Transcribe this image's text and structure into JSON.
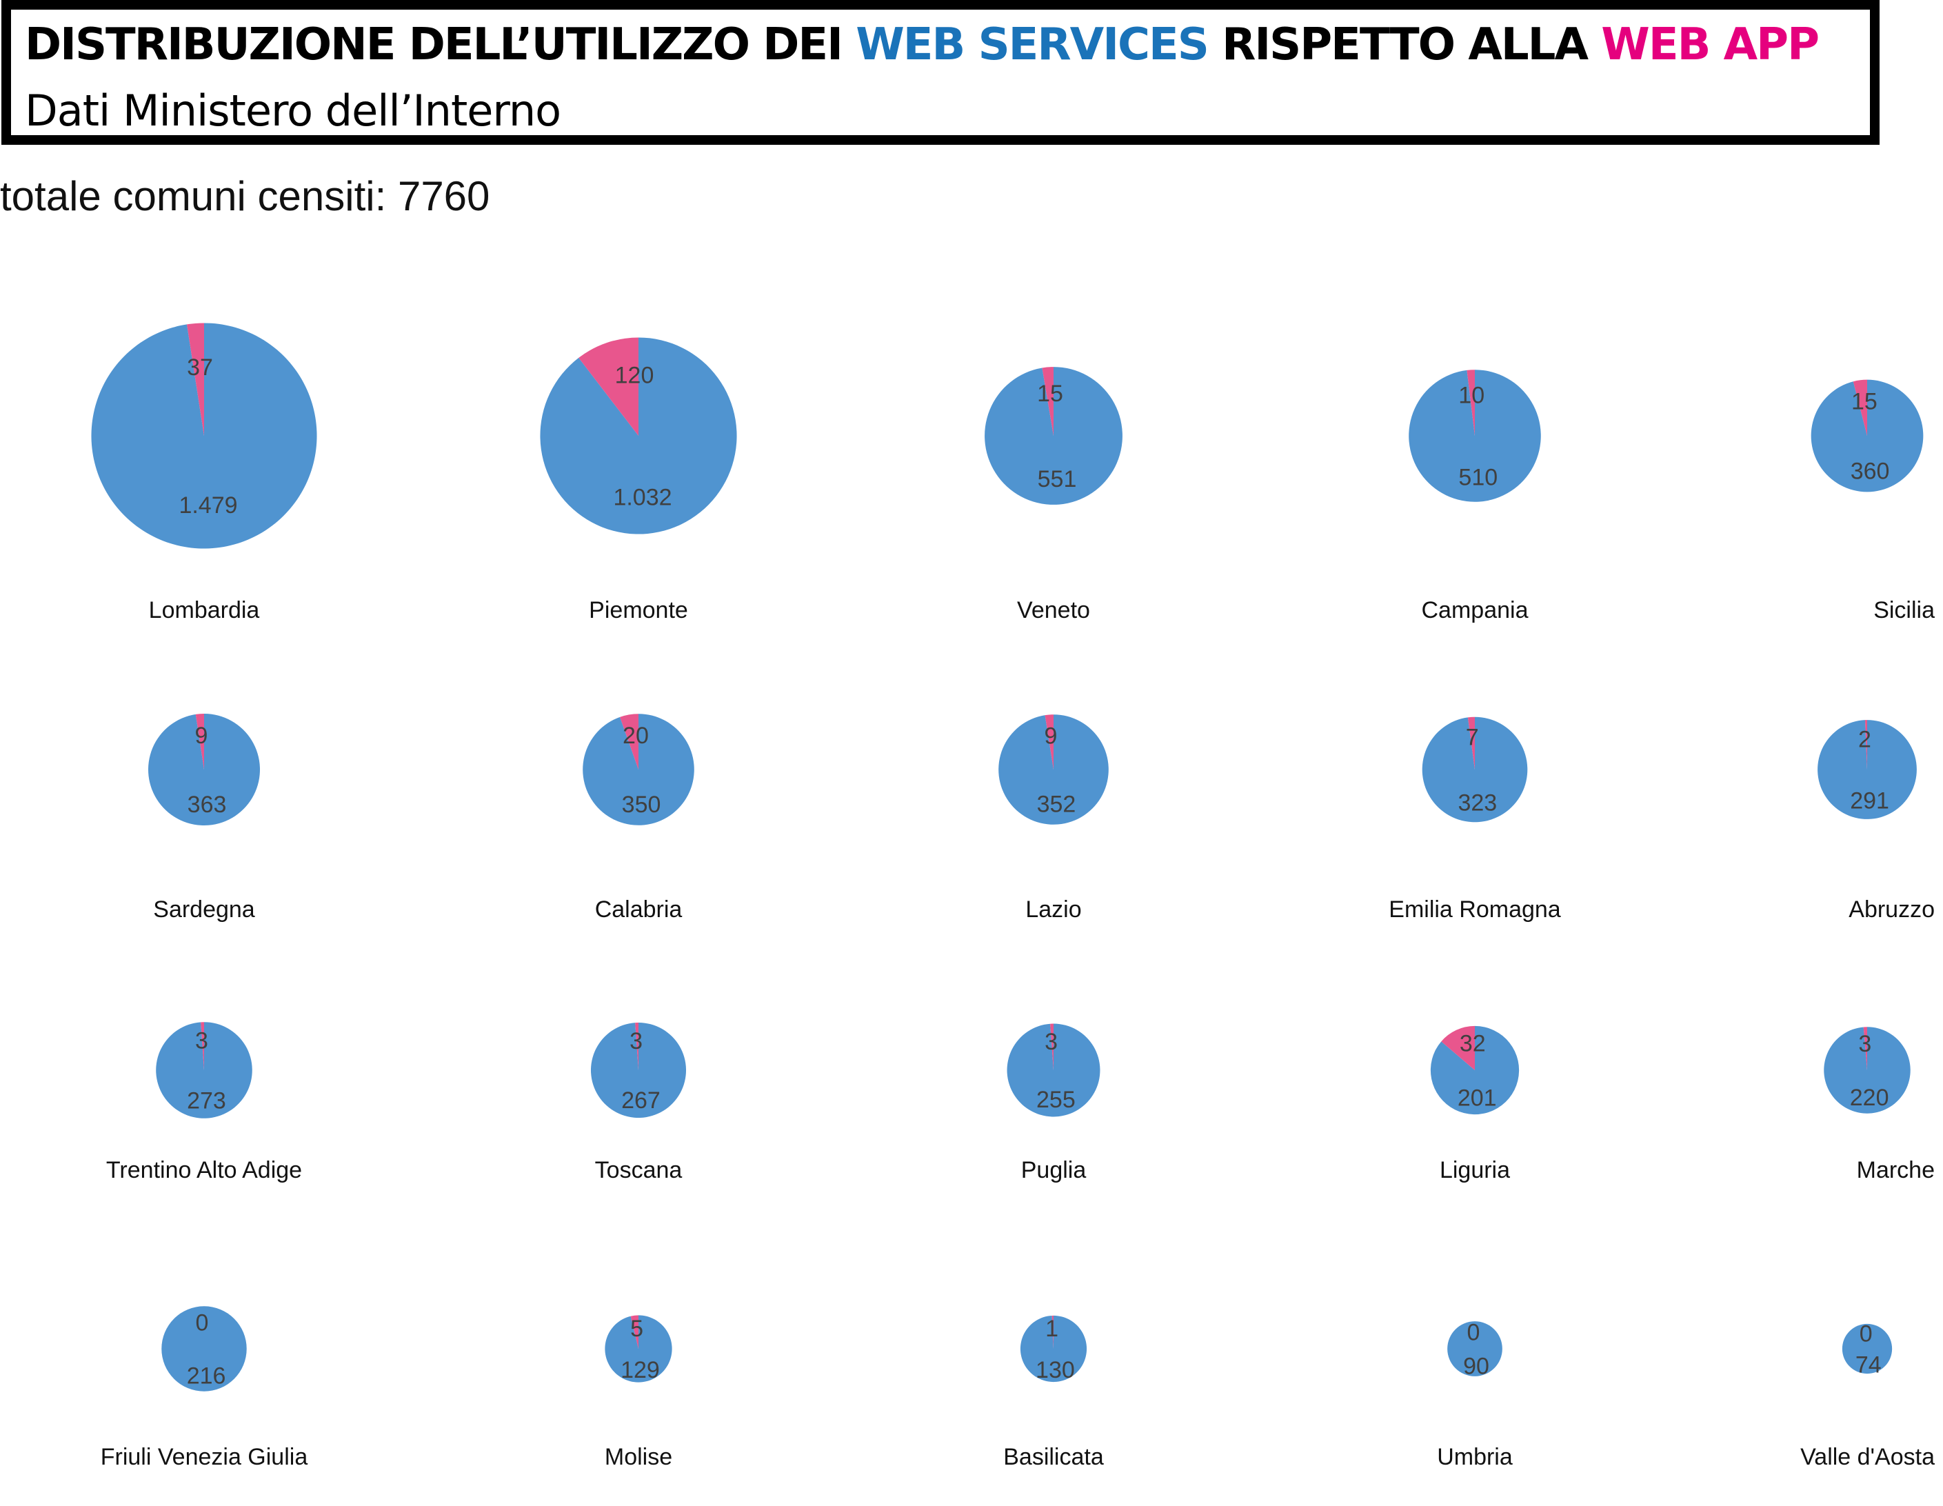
{
  "title": {
    "part1": "DISTRIBUZIONE DELL’UTILIZZO DEI ",
    "highlight_web_services": "WEB SERVICES",
    "part2": " RISPETTO ALLA ",
    "highlight_web_app": "WEB APP",
    "subtitle": "Dati Ministero dell’Interno"
  },
  "total_note": "totale comuni censiti: 7760",
  "colors": {
    "web_services": "#5094d0",
    "web_app": "#e8568d",
    "title_web_services": "#1a73b9",
    "title_web_app": "#e5007e"
  },
  "chart_data": {
    "type": "pie",
    "series_names": [
      "WEB SERVICES",
      "WEB APP"
    ],
    "regions": [
      {
        "name": "Lombardia",
        "web_services": 1479,
        "web_services_label": "1.479",
        "web_app": 37,
        "web_app_label": "37"
      },
      {
        "name": "Piemonte",
        "web_services": 1032,
        "web_services_label": "1.032",
        "web_app": 120,
        "web_app_label": "120"
      },
      {
        "name": "Veneto",
        "web_services": 551,
        "web_services_label": "551",
        "web_app": 15,
        "web_app_label": "15"
      },
      {
        "name": "Campania",
        "web_services": 510,
        "web_services_label": "510",
        "web_app": 10,
        "web_app_label": "10"
      },
      {
        "name": "Sicilia",
        "web_services": 360,
        "web_services_label": "360",
        "web_app": 15,
        "web_app_label": "15"
      },
      {
        "name": "Sardegna",
        "web_services": 363,
        "web_services_label": "363",
        "web_app": 9,
        "web_app_label": "9"
      },
      {
        "name": "Calabria",
        "web_services": 350,
        "web_services_label": "350",
        "web_app": 20,
        "web_app_label": "20"
      },
      {
        "name": "Lazio",
        "web_services": 352,
        "web_services_label": "352",
        "web_app": 9,
        "web_app_label": "9"
      },
      {
        "name": "Emilia Romagna",
        "web_services": 323,
        "web_services_label": "323",
        "web_app": 7,
        "web_app_label": "7"
      },
      {
        "name": "Abruzzo",
        "web_services": 291,
        "web_services_label": "291",
        "web_app": 2,
        "web_app_label": "2"
      },
      {
        "name": "Trentino Alto Adige",
        "web_services": 273,
        "web_services_label": "273",
        "web_app": 3,
        "web_app_label": "3"
      },
      {
        "name": "Toscana",
        "web_services": 267,
        "web_services_label": "267",
        "web_app": 3,
        "web_app_label": "3"
      },
      {
        "name": "Puglia",
        "web_services": 255,
        "web_services_label": "255",
        "web_app": 3,
        "web_app_label": "3"
      },
      {
        "name": "Liguria",
        "web_services": 201,
        "web_services_label": "201",
        "web_app": 32,
        "web_app_label": "32"
      },
      {
        "name": "Marche",
        "web_services": 220,
        "web_services_label": "220",
        "web_app": 3,
        "web_app_label": "3"
      },
      {
        "name": "Friuli Venezia Giulia",
        "web_services": 216,
        "web_services_label": "216",
        "web_app": 0,
        "web_app_label": "0"
      },
      {
        "name": "Molise",
        "web_services": 129,
        "web_services_label": "129",
        "web_app": 5,
        "web_app_label": "5"
      },
      {
        "name": "Basilicata",
        "web_services": 130,
        "web_services_label": "130",
        "web_app": 1,
        "web_app_label": "1"
      },
      {
        "name": "Umbria",
        "web_services": 90,
        "web_services_label": "90",
        "web_app": 0,
        "web_app_label": "0"
      },
      {
        "name": "Valle d'Aosta",
        "web_services": 74,
        "web_services_label": "74",
        "web_app": 0,
        "web_app_label": "0"
      }
    ]
  }
}
